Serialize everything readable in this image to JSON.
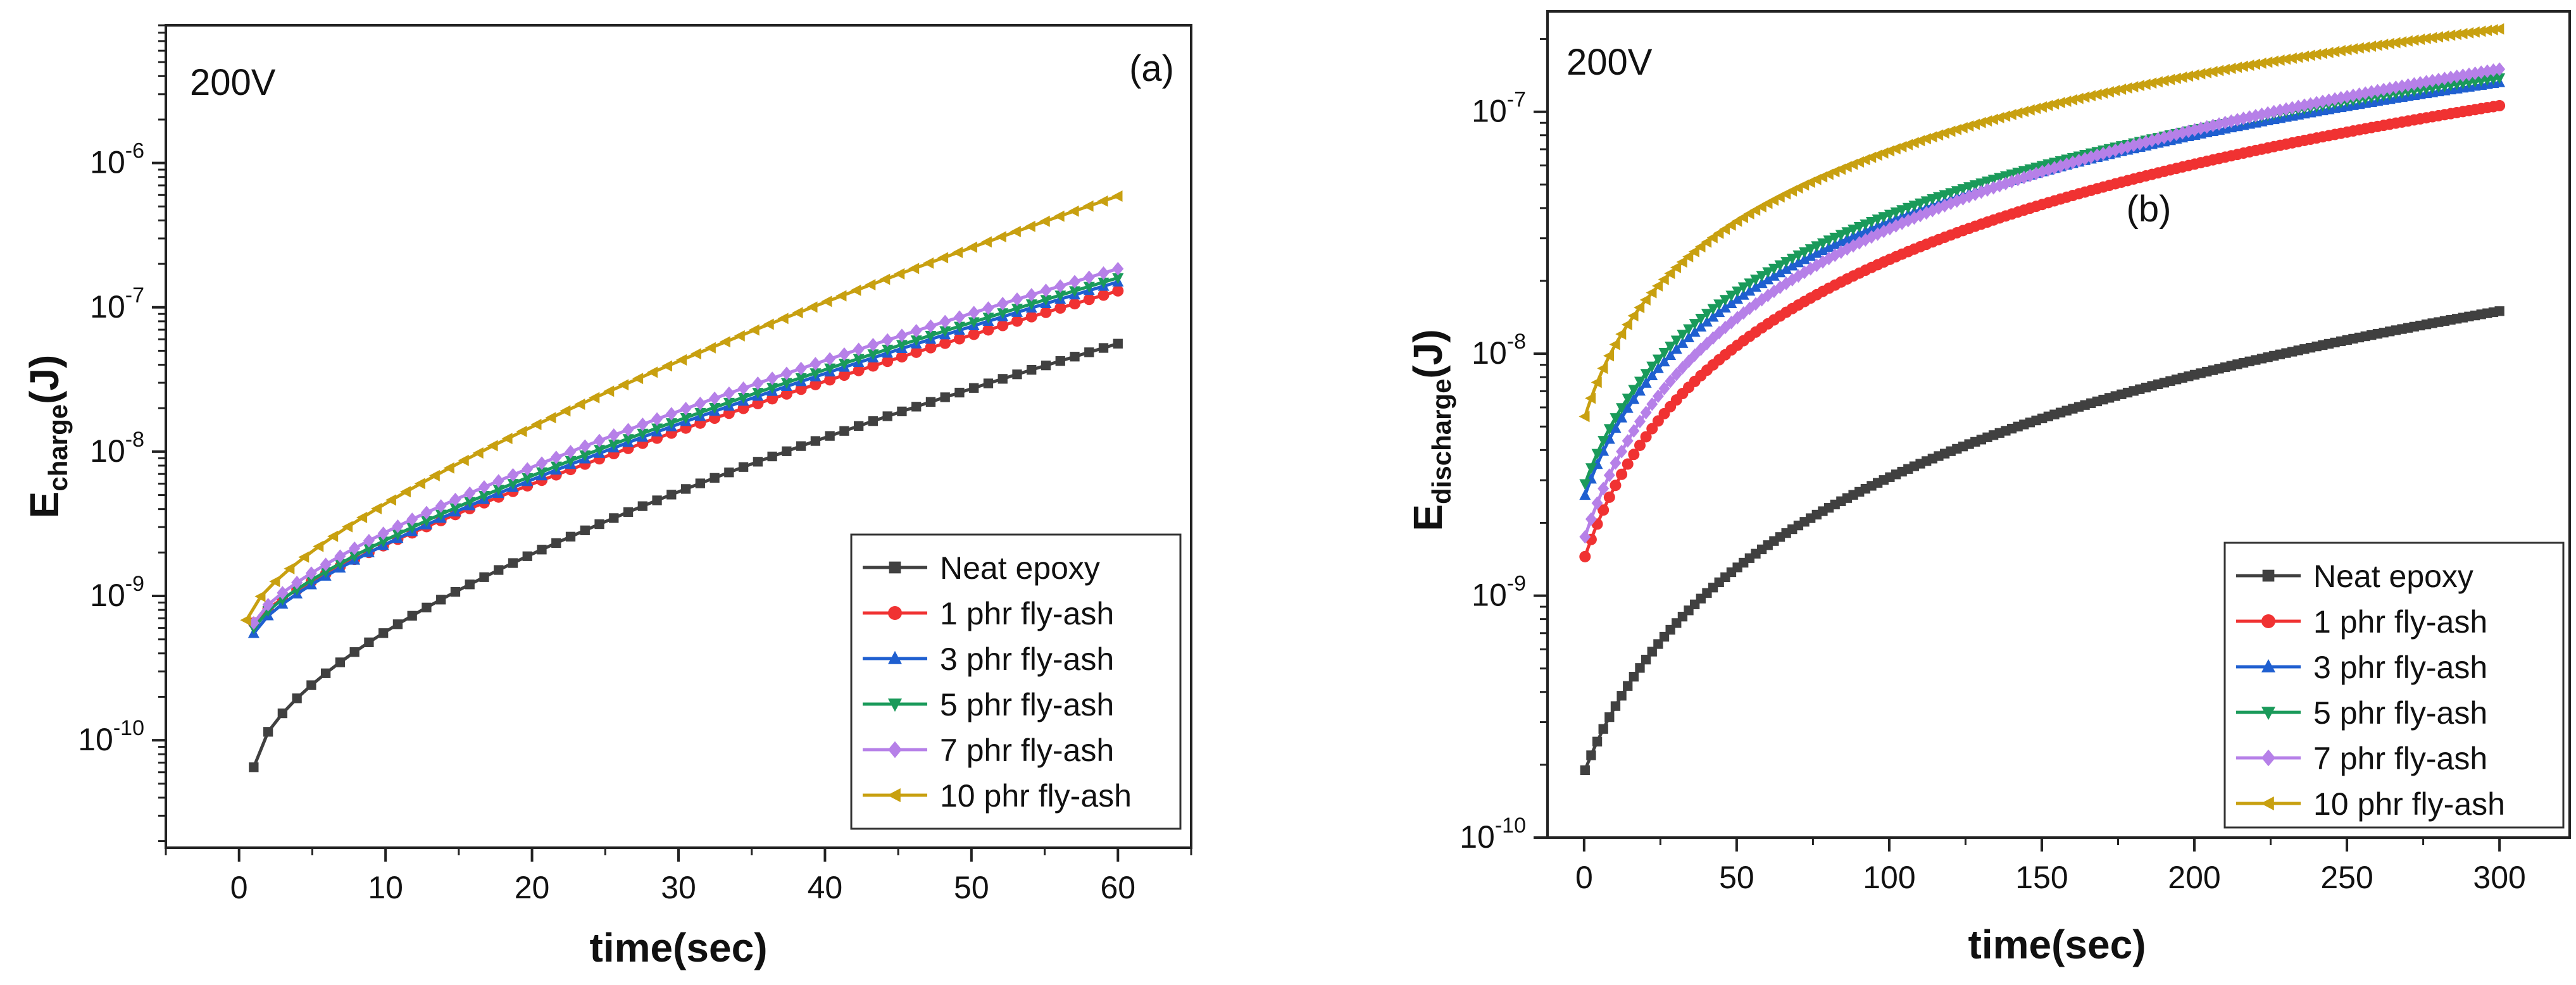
{
  "chart_data": [
    {
      "type": "line",
      "panel_label": "(a)",
      "voltage_label": "200V",
      "ylabel_main": "E",
      "ylabel_sub": "charge",
      "ylabel_unit": "(J)",
      "xlabel": "time(sec)",
      "yscale": "log",
      "xlim": [
        -5,
        65
      ],
      "ylim": [
        1.8e-11,
        9e-06
      ],
      "xticks": [
        0,
        10,
        20,
        30,
        40,
        50,
        60
      ],
      "xtick_labels": [
        "0",
        "10",
        "20",
        "30",
        "40",
        "50",
        "60"
      ],
      "yticks": [
        -10,
        -9,
        -8,
        -7,
        -6
      ],
      "ytick_labels": [
        "10-10",
        "10-9",
        "10-8",
        "10-7",
        "10-6"
      ],
      "legend_position": "bottom-right",
      "series": [
        {
          "name": "Neat epoxy",
          "color": "#404040",
          "marker": "square",
          "t_start": 1,
          "t_end": 60,
          "v_start": 6.5e-11,
          "v_end": 5.6e-08,
          "alpha": 1.65
        },
        {
          "name": "1 phr fly-ash",
          "color": "#f03232",
          "marker": "circle",
          "t_start": 1,
          "t_end": 60,
          "v_start": 6.5e-10,
          "v_end": 1.3e-07,
          "alpha": 1.3
        },
        {
          "name": "3 phr fly-ash",
          "color": "#1f5fd0",
          "marker": "triangle-up",
          "t_start": 1,
          "t_end": 60,
          "v_start": 5.5e-10,
          "v_end": 1.5e-07,
          "alpha": 1.37
        },
        {
          "name": "5 phr fly-ash",
          "color": "#1a9a5a",
          "marker": "triangle-down",
          "t_start": 1,
          "t_end": 60,
          "v_start": 6e-10,
          "v_end": 1.6e-07,
          "alpha": 1.36
        },
        {
          "name": "7 phr fly-ash",
          "color": "#b680e8",
          "marker": "diamond",
          "t_start": 1,
          "t_end": 60,
          "v_start": 6.5e-10,
          "v_end": 1.85e-07,
          "alpha": 1.38
        },
        {
          "name": "10 phr fly-ash",
          "color": "#c8a010",
          "marker": "triangle-left",
          "t_start": 0.5,
          "t_end": 60,
          "v_start": 6.8e-10,
          "v_end": 5.9e-07,
          "alpha": 1.42
        }
      ]
    },
    {
      "type": "line",
      "panel_label": "(b)",
      "voltage_label": "200V",
      "ylabel_main": "E",
      "ylabel_sub": "discharge",
      "ylabel_unit": "(J)",
      "xlabel": "time(sec)",
      "yscale": "log",
      "xlim": [
        -12,
        323
      ],
      "ylim": [
        1e-10,
        2.6e-07
      ],
      "xticks": [
        0,
        50,
        100,
        150,
        200,
        250,
        300
      ],
      "xtick_labels": [
        "0",
        "50",
        "100",
        "150",
        "200",
        "250",
        "300"
      ],
      "yticks": [
        -10,
        -9,
        -8,
        -7
      ],
      "ytick_labels": [
        "10-10",
        "10-9",
        "10-8",
        "10-7"
      ],
      "legend_position": "bottom-right",
      "series": [
        {
          "name": "Neat epoxy",
          "color": "#404040",
          "marker": "square",
          "t_start": 0.3,
          "t_end": 300,
          "v_start": 1.9e-10,
          "v_end": 1.5e-08,
          "tau": 22
        },
        {
          "name": "1 phr fly-ash",
          "color": "#f03232",
          "marker": "circle",
          "t_start": 0.3,
          "t_end": 300,
          "v_start": 1.45e-09,
          "v_end": 1.06e-07,
          "tau": 17
        },
        {
          "name": "3 phr fly-ash",
          "color": "#1f5fd0",
          "marker": "triangle-up",
          "t_start": 0.3,
          "t_end": 300,
          "v_start": 2.6e-09,
          "v_end": 1.32e-07,
          "tau": 16
        },
        {
          "name": "5 phr fly-ash",
          "color": "#1a9a5a",
          "marker": "triangle-down",
          "t_start": 0.3,
          "t_end": 300,
          "v_start": 2.9e-09,
          "v_end": 1.38e-07,
          "tau": 16
        },
        {
          "name": "7 phr fly-ash",
          "color": "#b680e8",
          "marker": "diamond",
          "t_start": 0.3,
          "t_end": 300,
          "v_start": 1.75e-09,
          "v_end": 1.5e-07,
          "tau": 17
        },
        {
          "name": "10 phr fly-ash",
          "color": "#c8a010",
          "marker": "triangle-left",
          "t_start": 0.3,
          "t_end": 300,
          "v_start": 5.5e-09,
          "v_end": 2.2e-07,
          "tau": 12
        }
      ]
    }
  ]
}
